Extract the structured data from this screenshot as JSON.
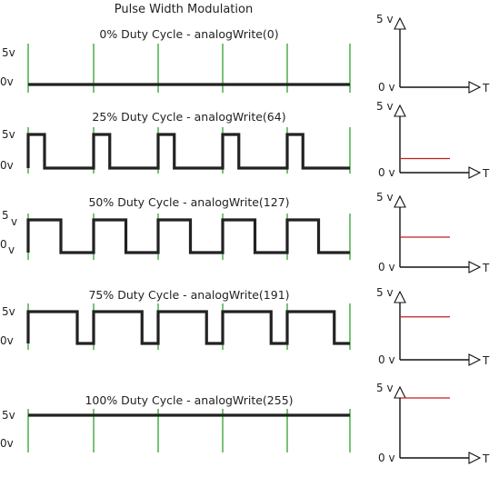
{
  "title": "Pulse Width Modulation",
  "colors": {
    "wave": "#222222",
    "period_marker": "#1f9a1f",
    "average_line": "#c41e1e",
    "axis": "#111111"
  },
  "panels": [
    {
      "label": "0% Duty Cycle - analogWrite(0)",
      "duty": 0.0,
      "high_label": "5v",
      "low_label": "0v",
      "axis_v_label": "5 v",
      "axis_zero_label": "0 v",
      "axis_t_label": "T"
    },
    {
      "label": "25% Duty Cycle - analogWrite(64)",
      "duty": 0.25,
      "high_label": "5v",
      "low_label": "0v",
      "axis_v_label": "5 v",
      "axis_zero_label": "0 v",
      "axis_t_label": "T"
    },
    {
      "label": "50% Duty Cycle - analogWrite(127)",
      "duty": 0.5,
      "high_label": "5",
      "high_label_2": "v",
      "low_label": "0",
      "low_label_2": "v",
      "axis_v_label": "5 v",
      "axis_zero_label": "0 v",
      "axis_t_label": "T"
    },
    {
      "label": "75% Duty Cycle - analogWrite(191)",
      "duty": 0.75,
      "high_label": "5v",
      "low_label": "0v",
      "axis_v_label": "5 v",
      "axis_zero_label": "0 v",
      "axis_t_label": "T"
    },
    {
      "label": "100% Duty Cycle - analogWrite(255)",
      "duty": 1.0,
      "high_label": "5v",
      "low_label": "0v",
      "axis_v_label": "5 v",
      "axis_zero_label": "0 v",
      "axis_t_label": "T"
    }
  ]
}
